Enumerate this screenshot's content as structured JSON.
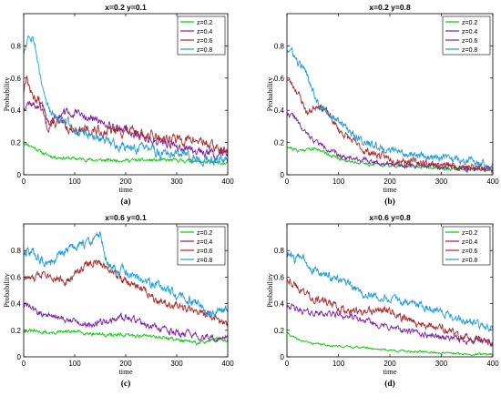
{
  "chart_data": [
    {
      "id": "a",
      "type": "line",
      "title": "x=0.2 y=0.1",
      "caption": "(a)",
      "xlabel": "time",
      "ylabel": "Probability",
      "xlim": [
        0,
        400
      ],
      "ylim": [
        0,
        1
      ],
      "xticks": [
        0,
        100,
        200,
        300,
        400
      ],
      "yticks": [
        0,
        0.2,
        0.4,
        0.6,
        0.8
      ],
      "grid": false,
      "legend_position": "top-right",
      "series": [
        {
          "name": "z=0.2",
          "color": "#00cc00",
          "anchors": [
            [
              0,
              0.2
            ],
            [
              20,
              0.17
            ],
            [
              40,
              0.13
            ],
            [
              60,
              0.11
            ],
            [
              100,
              0.1
            ],
            [
              150,
              0.09
            ],
            [
              200,
              0.09
            ],
            [
              250,
              0.09
            ],
            [
              300,
              0.09
            ],
            [
              350,
              0.08
            ],
            [
              400,
              0.07
            ]
          ],
          "noise": 0.008,
          "seed": 11
        },
        {
          "name": "z=0.4",
          "color": "#7a1fa2",
          "anchors": [
            [
              0,
              0.42
            ],
            [
              10,
              0.45
            ],
            [
              20,
              0.43
            ],
            [
              40,
              0.42
            ],
            [
              50,
              0.3
            ],
            [
              60,
              0.36
            ],
            [
              80,
              0.38
            ],
            [
              100,
              0.38
            ],
            [
              150,
              0.33
            ],
            [
              200,
              0.28
            ],
            [
              250,
              0.21
            ],
            [
              300,
              0.18
            ],
            [
              350,
              0.14
            ],
            [
              380,
              0.13
            ],
            [
              400,
              0.14
            ]
          ],
          "noise": 0.02,
          "seed": 12
        },
        {
          "name": "z=0.6",
          "color": "#a52a2a",
          "anchors": [
            [
              0,
              0.52
            ],
            [
              5,
              0.62
            ],
            [
              15,
              0.5
            ],
            [
              30,
              0.46
            ],
            [
              45,
              0.3
            ],
            [
              60,
              0.32
            ],
            [
              80,
              0.3
            ],
            [
              100,
              0.28
            ],
            [
              150,
              0.27
            ],
            [
              200,
              0.27
            ],
            [
              250,
              0.24
            ],
            [
              300,
              0.22
            ],
            [
              350,
              0.21
            ],
            [
              380,
              0.16
            ],
            [
              400,
              0.14
            ]
          ],
          "noise": 0.025,
          "seed": 13
        },
        {
          "name": "z=0.8",
          "color": "#1e9bd7",
          "anchors": [
            [
              0,
              0.76
            ],
            [
              10,
              0.88
            ],
            [
              20,
              0.85
            ],
            [
              35,
              0.55
            ],
            [
              50,
              0.4
            ],
            [
              60,
              0.38
            ],
            [
              80,
              0.35
            ],
            [
              100,
              0.28
            ],
            [
              150,
              0.22
            ],
            [
              200,
              0.17
            ],
            [
              250,
              0.15
            ],
            [
              300,
              0.12
            ],
            [
              350,
              0.1
            ],
            [
              400,
              0.09
            ]
          ],
          "noise": 0.025,
          "seed": 14
        }
      ]
    },
    {
      "id": "b",
      "type": "line",
      "title": "x=0.2 y=0.8",
      "caption": "(b)",
      "xlabel": "time",
      "ylabel": "Probability",
      "xlim": [
        0,
        400
      ],
      "ylim": [
        0,
        1
      ],
      "xticks": [
        0,
        100,
        200,
        300,
        400
      ],
      "yticks": [
        0,
        0.2,
        0.4,
        0.6,
        0.8
      ],
      "grid": false,
      "legend_position": "top-right",
      "series": [
        {
          "name": "z=0.2",
          "color": "#00cc00",
          "anchors": [
            [
              0,
              0.18
            ],
            [
              20,
              0.15
            ],
            [
              40,
              0.16
            ],
            [
              60,
              0.16
            ],
            [
              80,
              0.13
            ],
            [
              100,
              0.1
            ],
            [
              150,
              0.07
            ],
            [
              200,
              0.06
            ],
            [
              250,
              0.05
            ],
            [
              300,
              0.04
            ],
            [
              350,
              0.03
            ],
            [
              400,
              0.03
            ]
          ],
          "noise": 0.008,
          "seed": 21
        },
        {
          "name": "z=0.4",
          "color": "#7a1fa2",
          "anchors": [
            [
              0,
              0.38
            ],
            [
              15,
              0.36
            ],
            [
              30,
              0.28
            ],
            [
              50,
              0.22
            ],
            [
              80,
              0.16
            ],
            [
              100,
              0.12
            ],
            [
              150,
              0.09
            ],
            [
              200,
              0.07
            ],
            [
              250,
              0.06
            ],
            [
              300,
              0.05
            ],
            [
              350,
              0.04
            ],
            [
              400,
              0.04
            ]
          ],
          "noise": 0.012,
          "seed": 22
        },
        {
          "name": "z=0.6",
          "color": "#a52a2a",
          "anchors": [
            [
              0,
              0.6
            ],
            [
              20,
              0.52
            ],
            [
              40,
              0.38
            ],
            [
              60,
              0.44
            ],
            [
              80,
              0.38
            ],
            [
              100,
              0.28
            ],
            [
              150,
              0.15
            ],
            [
              200,
              0.1
            ],
            [
              250,
              0.08
            ],
            [
              300,
              0.06
            ],
            [
              350,
              0.05
            ],
            [
              400,
              0.04
            ]
          ],
          "noise": 0.018,
          "seed": 23
        },
        {
          "name": "z=0.8",
          "color": "#1e9bd7",
          "anchors": [
            [
              0,
              0.78
            ],
            [
              10,
              0.76
            ],
            [
              20,
              0.7
            ],
            [
              40,
              0.62
            ],
            [
              60,
              0.45
            ],
            [
              80,
              0.38
            ],
            [
              100,
              0.33
            ],
            [
              150,
              0.2
            ],
            [
              200,
              0.15
            ],
            [
              250,
              0.12
            ],
            [
              300,
              0.1
            ],
            [
              350,
              0.09
            ],
            [
              400,
              0.06
            ]
          ],
          "noise": 0.02,
          "seed": 24
        }
      ]
    },
    {
      "id": "c",
      "type": "line",
      "title": "x=0.6 y=0.1",
      "caption": "(c)",
      "xlabel": "time",
      "ylabel": "Probability",
      "xlim": [
        0,
        400
      ],
      "ylim": [
        0,
        1
      ],
      "xticks": [
        0,
        100,
        200,
        300,
        400
      ],
      "yticks": [
        0,
        0.2,
        0.4,
        0.6,
        0.8
      ],
      "grid": false,
      "legend_position": "top-right",
      "series": [
        {
          "name": "z=0.2",
          "color": "#00cc00",
          "anchors": [
            [
              0,
              0.2
            ],
            [
              50,
              0.18
            ],
            [
              100,
              0.19
            ],
            [
              150,
              0.17
            ],
            [
              200,
              0.16
            ],
            [
              250,
              0.16
            ],
            [
              300,
              0.13
            ],
            [
              340,
              0.1
            ],
            [
              370,
              0.13
            ],
            [
              400,
              0.13
            ]
          ],
          "noise": 0.01,
          "seed": 31
        },
        {
          "name": "z=0.4",
          "color": "#7a1fa2",
          "anchors": [
            [
              0,
              0.4
            ],
            [
              30,
              0.33
            ],
            [
              60,
              0.3
            ],
            [
              100,
              0.27
            ],
            [
              130,
              0.24
            ],
            [
              160,
              0.27
            ],
            [
              200,
              0.3
            ],
            [
              230,
              0.26
            ],
            [
              260,
              0.22
            ],
            [
              300,
              0.18
            ],
            [
              350,
              0.15
            ],
            [
              380,
              0.13
            ],
            [
              400,
              0.14
            ]
          ],
          "noise": 0.02,
          "seed": 32
        },
        {
          "name": "z=0.6",
          "color": "#a52a2a",
          "anchors": [
            [
              0,
              0.6
            ],
            [
              20,
              0.58
            ],
            [
              40,
              0.65
            ],
            [
              60,
              0.6
            ],
            [
              90,
              0.57
            ],
            [
              110,
              0.66
            ],
            [
              130,
              0.71
            ],
            [
              150,
              0.7
            ],
            [
              170,
              0.66
            ],
            [
              200,
              0.56
            ],
            [
              230,
              0.52
            ],
            [
              260,
              0.44
            ],
            [
              300,
              0.38
            ],
            [
              340,
              0.34
            ],
            [
              370,
              0.3
            ],
            [
              400,
              0.23
            ]
          ],
          "noise": 0.025,
          "seed": 33
        },
        {
          "name": "z=0.8",
          "color": "#1e9bd7",
          "anchors": [
            [
              0,
              0.8
            ],
            [
              20,
              0.78
            ],
            [
              40,
              0.7
            ],
            [
              60,
              0.72
            ],
            [
              80,
              0.8
            ],
            [
              100,
              0.83
            ],
            [
              120,
              0.85
            ],
            [
              140,
              0.88
            ],
            [
              150,
              0.93
            ],
            [
              165,
              0.7
            ],
            [
              190,
              0.65
            ],
            [
              220,
              0.6
            ],
            [
              260,
              0.54
            ],
            [
              300,
              0.46
            ],
            [
              340,
              0.4
            ],
            [
              370,
              0.32
            ],
            [
              400,
              0.36
            ]
          ],
          "noise": 0.03,
          "seed": 34
        }
      ]
    },
    {
      "id": "d",
      "type": "line",
      "title": "x=0.6 y=0.8",
      "caption": "(d)",
      "xlabel": "time",
      "ylabel": "Probability",
      "xlim": [
        0,
        400
      ],
      "ylim": [
        0,
        1
      ],
      "xticks": [
        0,
        100,
        200,
        300,
        400
      ],
      "yticks": [
        0,
        0.2,
        0.4,
        0.6,
        0.8
      ],
      "grid": false,
      "legend_position": "top-right",
      "series": [
        {
          "name": "z=0.2",
          "color": "#00cc00",
          "anchors": [
            [
              0,
              0.18
            ],
            [
              20,
              0.13
            ],
            [
              50,
              0.1
            ],
            [
              100,
              0.08
            ],
            [
              150,
              0.07
            ],
            [
              200,
              0.05
            ],
            [
              250,
              0.04
            ],
            [
              300,
              0.03
            ],
            [
              350,
              0.02
            ],
            [
              400,
              0.02
            ]
          ],
          "noise": 0.006,
          "seed": 41
        },
        {
          "name": "z=0.4",
          "color": "#7a1fa2",
          "anchors": [
            [
              0,
              0.4
            ],
            [
              20,
              0.35
            ],
            [
              50,
              0.33
            ],
            [
              100,
              0.32
            ],
            [
              150,
              0.27
            ],
            [
              200,
              0.22
            ],
            [
              250,
              0.18
            ],
            [
              300,
              0.15
            ],
            [
              340,
              0.13
            ],
            [
              370,
              0.12
            ],
            [
              400,
              0.11
            ]
          ],
          "noise": 0.018,
          "seed": 42
        },
        {
          "name": "z=0.6",
          "color": "#a52a2a",
          "anchors": [
            [
              0,
              0.6
            ],
            [
              20,
              0.52
            ],
            [
              50,
              0.45
            ],
            [
              80,
              0.4
            ],
            [
              110,
              0.36
            ],
            [
              150,
              0.32
            ],
            [
              190,
              0.36
            ],
            [
              220,
              0.3
            ],
            [
              260,
              0.25
            ],
            [
              300,
              0.22
            ],
            [
              340,
              0.15
            ],
            [
              370,
              0.12
            ],
            [
              400,
              0.11
            ]
          ],
          "noise": 0.025,
          "seed": 43
        },
        {
          "name": "z=0.8",
          "color": "#1e9bd7",
          "anchors": [
            [
              0,
              0.78
            ],
            [
              15,
              0.73
            ],
            [
              30,
              0.77
            ],
            [
              50,
              0.65
            ],
            [
              100,
              0.58
            ],
            [
              150,
              0.47
            ],
            [
              200,
              0.43
            ],
            [
              250,
              0.4
            ],
            [
              300,
              0.34
            ],
            [
              340,
              0.28
            ],
            [
              370,
              0.24
            ],
            [
              400,
              0.2
            ]
          ],
          "noise": 0.025,
          "seed": 44
        }
      ]
    }
  ]
}
